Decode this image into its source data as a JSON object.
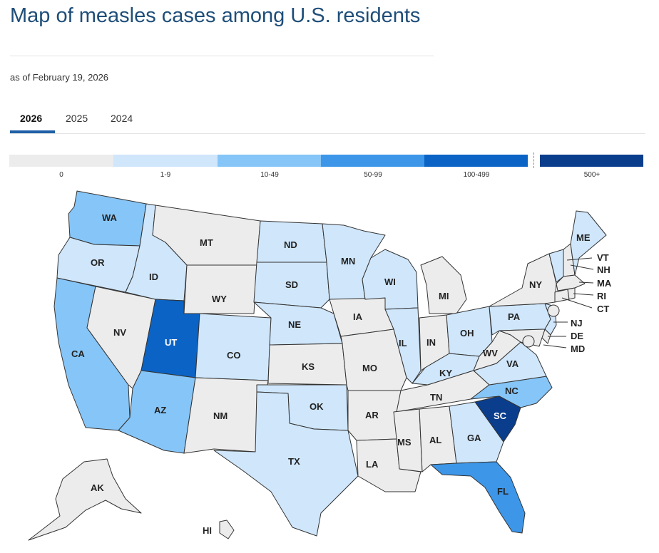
{
  "title": "Map of measles cases among U.S. residents",
  "as_of": "as of February 19, 2026",
  "tabs": [
    {
      "label": "2026",
      "active": true
    },
    {
      "label": "2025",
      "active": false
    },
    {
      "label": "2024",
      "active": false
    }
  ],
  "legend": [
    {
      "label": "0",
      "color": "#ececec"
    },
    {
      "label": "1-9",
      "color": "#cfe6fb"
    },
    {
      "label": "10-49",
      "color": "#86c5f7"
    },
    {
      "label": "50-99",
      "color": "#3d96e8"
    },
    {
      "label": "100-499",
      "color": "#0b63c5"
    },
    {
      "label": "500+",
      "color": "#0a3d8c"
    }
  ],
  "states": {
    "WA": "10-49",
    "OR": "1-9",
    "CA": "10-49",
    "NV": "0",
    "ID": "1-9",
    "MT": "0",
    "WY": "0",
    "UT": "100-499",
    "AZ": "10-49",
    "CO": "1-9",
    "NM": "0",
    "ND": "1-9",
    "SD": "1-9",
    "NE": "1-9",
    "KS": "0",
    "OK": "1-9",
    "TX": "1-9",
    "MN": "1-9",
    "IA": "0",
    "MO": "0",
    "AR": "0",
    "LA": "0",
    "WI": "1-9",
    "IL": "1-9",
    "MI": "0",
    "IN": "0",
    "OH": "1-9",
    "KY": "1-9",
    "TN": "0",
    "MS": "0",
    "AL": "0",
    "GA": "1-9",
    "FL": "50-99",
    "SC": "500+",
    "NC": "10-49",
    "VA": "1-9",
    "WV": "0",
    "PA": "1-9",
    "NY": "0",
    "ME": "1-9",
    "VT": "1-9",
    "NH": "0",
    "MA": "0",
    "RI": "0",
    "CT": "0",
    "NJ": "1-9",
    "DE": "0",
    "MD": "0",
    "AK": "0",
    "HI": "0"
  }
}
